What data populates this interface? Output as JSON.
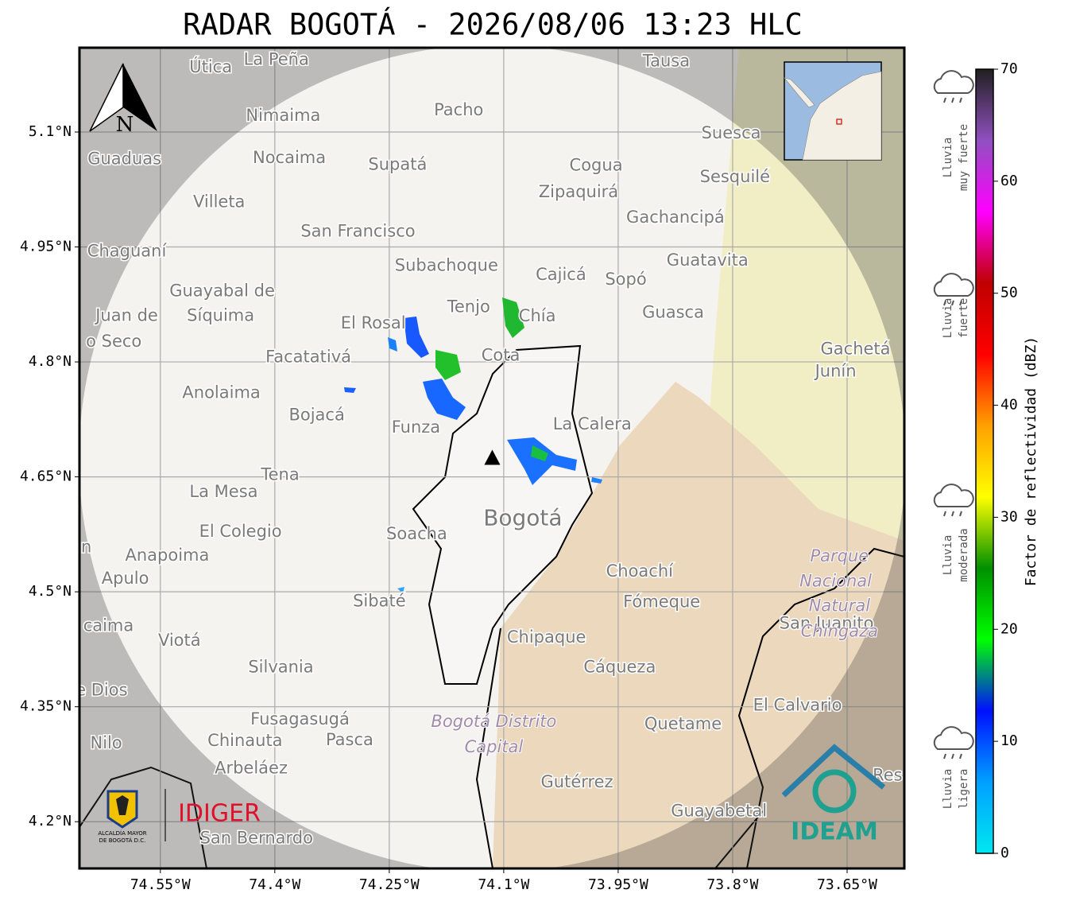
{
  "header": {
    "title": "RADAR BOGOTÁ - 2026/08/06 13:23 HLC"
  },
  "map": {
    "xlim": [
      -74.656,
      -73.575
    ],
    "ylim": [
      4.139,
      5.21
    ],
    "xticks": [
      {
        "value": -74.55,
        "label": "74.55°W"
      },
      {
        "value": -74.4,
        "label": "74.4°W"
      },
      {
        "value": -74.25,
        "label": "74.25°W"
      },
      {
        "value": -74.1,
        "label": "74.1°W"
      },
      {
        "value": -73.95,
        "label": "73.95°W"
      },
      {
        "value": -73.8,
        "label": "73.8°W"
      },
      {
        "value": -73.65,
        "label": "73.65°W"
      }
    ],
    "yticks": [
      {
        "value": 5.1,
        "label": "5.1°N"
      },
      {
        "value": 4.95,
        "label": "4.95°N"
      },
      {
        "value": 4.8,
        "label": "4.8°N"
      },
      {
        "value": 4.65,
        "label": "4.65°N"
      },
      {
        "value": 4.5,
        "label": "4.5°N"
      },
      {
        "value": 4.35,
        "label": "4.35°N"
      },
      {
        "value": 4.2,
        "label": "4.2°N"
      }
    ],
    "grid": true,
    "north_label": "N",
    "radar_site": {
      "lon": -74.115,
      "lat": 4.674
    },
    "capital": {
      "name": "Bogotá",
      "lon": -74.075,
      "lat": 4.595
    },
    "places": [
      {
        "name": "Útica",
        "lon": -74.484,
        "lat": 5.184
      },
      {
        "name": "La Peña",
        "lon": -74.398,
        "lat": 5.194
      },
      {
        "name": "Tausa",
        "lon": -73.887,
        "lat": 5.192
      },
      {
        "name": "Nimaima",
        "lon": -74.389,
        "lat": 5.121
      },
      {
        "name": "Pacho",
        "lon": -74.159,
        "lat": 5.128
      },
      {
        "name": "Guaduas",
        "lon": -74.597,
        "lat": 5.064
      },
      {
        "name": "Nocaima",
        "lon": -74.381,
        "lat": 5.066
      },
      {
        "name": "Supatá",
        "lon": -74.239,
        "lat": 5.057
      },
      {
        "name": "Cogua",
        "lon": -73.979,
        "lat": 5.056
      },
      {
        "name": "Suesca",
        "lon": -73.802,
        "lat": 5.098
      },
      {
        "name": "Sesquilé",
        "lon": -73.797,
        "lat": 5.041
      },
      {
        "name": "Zipaquirá",
        "lon": -74.002,
        "lat": 5.021
      },
      {
        "name": "Villeta",
        "lon": -74.473,
        "lat": 5.008
      },
      {
        "name": "Gachancipá",
        "lon": -73.875,
        "lat": 4.988
      },
      {
        "name": "San Francisco",
        "lon": -74.291,
        "lat": 4.97
      },
      {
        "name": "Chaguaní",
        "lon": -74.594,
        "lat": 4.944
      },
      {
        "name": "Guatavita",
        "lon": -73.833,
        "lat": 4.932
      },
      {
        "name": "Subachoque",
        "lon": -74.175,
        "lat": 4.925
      },
      {
        "name": "Cajicá",
        "lon": -74.025,
        "lat": 4.913
      },
      {
        "name": "Sopó",
        "lon": -73.94,
        "lat": 4.907
      },
      {
        "name": "Guayabal de",
        "lon": -74.469,
        "lat": 4.892
      },
      {
        "name": "Síquima",
        "lon": -74.471,
        "lat": 4.86
      },
      {
        "name": "Juan de",
        "lon": -74.594,
        "lat": 4.86
      },
      {
        "name": "o Seco",
        "lon": -74.611,
        "lat": 4.826
      },
      {
        "name": "Tenjo",
        "lon": -74.146,
        "lat": 4.871
      },
      {
        "name": "Chía",
        "lon": -74.056,
        "lat": 4.859
      },
      {
        "name": "Guasca",
        "lon": -73.878,
        "lat": 4.864
      },
      {
        "name": "El Rosal",
        "lon": -74.271,
        "lat": 4.85
      },
      {
        "name": "Facatativá",
        "lon": -74.356,
        "lat": 4.806
      },
      {
        "name": "Cota",
        "lon": -74.104,
        "lat": 4.808
      },
      {
        "name": "Gachetá",
        "lon": -73.639,
        "lat": 4.816
      },
      {
        "name": "Junín",
        "lon": -73.665,
        "lat": 4.787
      },
      {
        "name": "Anolaima",
        "lon": -74.47,
        "lat": 4.759
      },
      {
        "name": "Bojacá",
        "lon": -74.345,
        "lat": 4.73
      },
      {
        "name": "Funza",
        "lon": -74.215,
        "lat": 4.714
      },
      {
        "name": "La Calera",
        "lon": -73.984,
        "lat": 4.718
      },
      {
        "name": "Tena",
        "lon": -74.393,
        "lat": 4.652
      },
      {
        "name": "La Mesa",
        "lon": -74.467,
        "lat": 4.63
      },
      {
        "name": "El Colegio",
        "lon": -74.445,
        "lat": 4.578
      },
      {
        "name": "Soacha",
        "lon": -74.214,
        "lat": 4.575
      },
      {
        "name": "n",
        "lon": -74.647,
        "lat": 4.558
      },
      {
        "name": "Anapoima",
        "lon": -74.541,
        "lat": 4.547
      },
      {
        "name": "Apulo",
        "lon": -74.596,
        "lat": 4.517
      },
      {
        "name": "Choachí",
        "lon": -73.922,
        "lat": 4.526
      },
      {
        "name": "Sibaté",
        "lon": -74.263,
        "lat": 4.487
      },
      {
        "name": "Fómeque",
        "lon": -73.893,
        "lat": 4.486
      },
      {
        "name": "San Juanito",
        "lon": -73.677,
        "lat": 4.458
      },
      {
        "name": "caima",
        "lon": -74.618,
        "lat": 4.455
      },
      {
        "name": "Viotá",
        "lon": -74.525,
        "lat": 4.436
      },
      {
        "name": "Chipaque",
        "lon": -74.044,
        "lat": 4.44
      },
      {
        "name": "Silvania",
        "lon": -74.392,
        "lat": 4.401
      },
      {
        "name": "Cáqueza",
        "lon": -73.948,
        "lat": 4.401
      },
      {
        "name": "e Dios",
        "lon": -74.627,
        "lat": 4.371
      },
      {
        "name": "El Calvario",
        "lon": -73.715,
        "lat": 4.351
      },
      {
        "name": "Fusagasugá",
        "lon": -74.367,
        "lat": 4.333
      },
      {
        "name": "Quetame",
        "lon": -73.865,
        "lat": 4.327
      },
      {
        "name": "Nilo",
        "lon": -74.621,
        "lat": 4.302
      },
      {
        "name": "Chinauta",
        "lon": -74.439,
        "lat": 4.305
      },
      {
        "name": "Pasca",
        "lon": -74.302,
        "lat": 4.306
      },
      {
        "name": "Arbeláez",
        "lon": -74.431,
        "lat": 4.269
      },
      {
        "name": "Gutérrez",
        "lon": -74.004,
        "lat": 4.251
      },
      {
        "name": "Res",
        "lon": -73.597,
        "lat": 4.26
      },
      {
        "name": "Guayabetal",
        "lon": -73.818,
        "lat": 4.213
      },
      {
        "name": "San Bernardo",
        "lon": -74.424,
        "lat": 4.178
      }
    ],
    "protected_areas": [
      {
        "name": "Parque",
        "lon": -73.66,
        "lat": 4.546
      },
      {
        "name": "Nacional",
        "lon": -73.665,
        "lat": 4.513
      },
      {
        "name": "Natural",
        "lon": -73.66,
        "lat": 4.481
      },
      {
        "name": "Chingaza",
        "lon": -73.66,
        "lat": 4.448
      },
      {
        "name": "Bogotá Distrito",
        "lon": -74.113,
        "lat": 4.33
      },
      {
        "name": "Capital",
        "lon": -74.113,
        "lat": 4.297
      }
    ]
  },
  "colorbar": {
    "label": "Factor de reflectividad (dBZ)",
    "lim": [
      0,
      70
    ],
    "ticks": [
      0,
      10,
      20,
      30,
      40,
      50,
      60,
      70
    ],
    "colors": [
      "#00e8f0",
      "#00a0ff",
      "#0010ff",
      "#00ff00",
      "#009000",
      "#ffff00",
      "#ffa000",
      "#ff0000",
      "#c00000",
      "#ff00ff",
      "#9050c0",
      "#202020"
    ]
  },
  "rain_levels": [
    {
      "lines": [
        "Lluvia",
        "muy fuerte"
      ]
    },
    {
      "lines": [
        "Lluvia",
        "fuerte"
      ]
    },
    {
      "lines": [
        "Lluvia",
        "moderada"
      ]
    },
    {
      "lines": [
        "Lluvia",
        "ligera"
      ]
    }
  ],
  "logos": {
    "alcaldia": [
      "ALCALDÍA MAYOR",
      "DE BOGOTÁ D.C."
    ],
    "idiger": "IDIGER",
    "ideam": "IDEAM"
  }
}
